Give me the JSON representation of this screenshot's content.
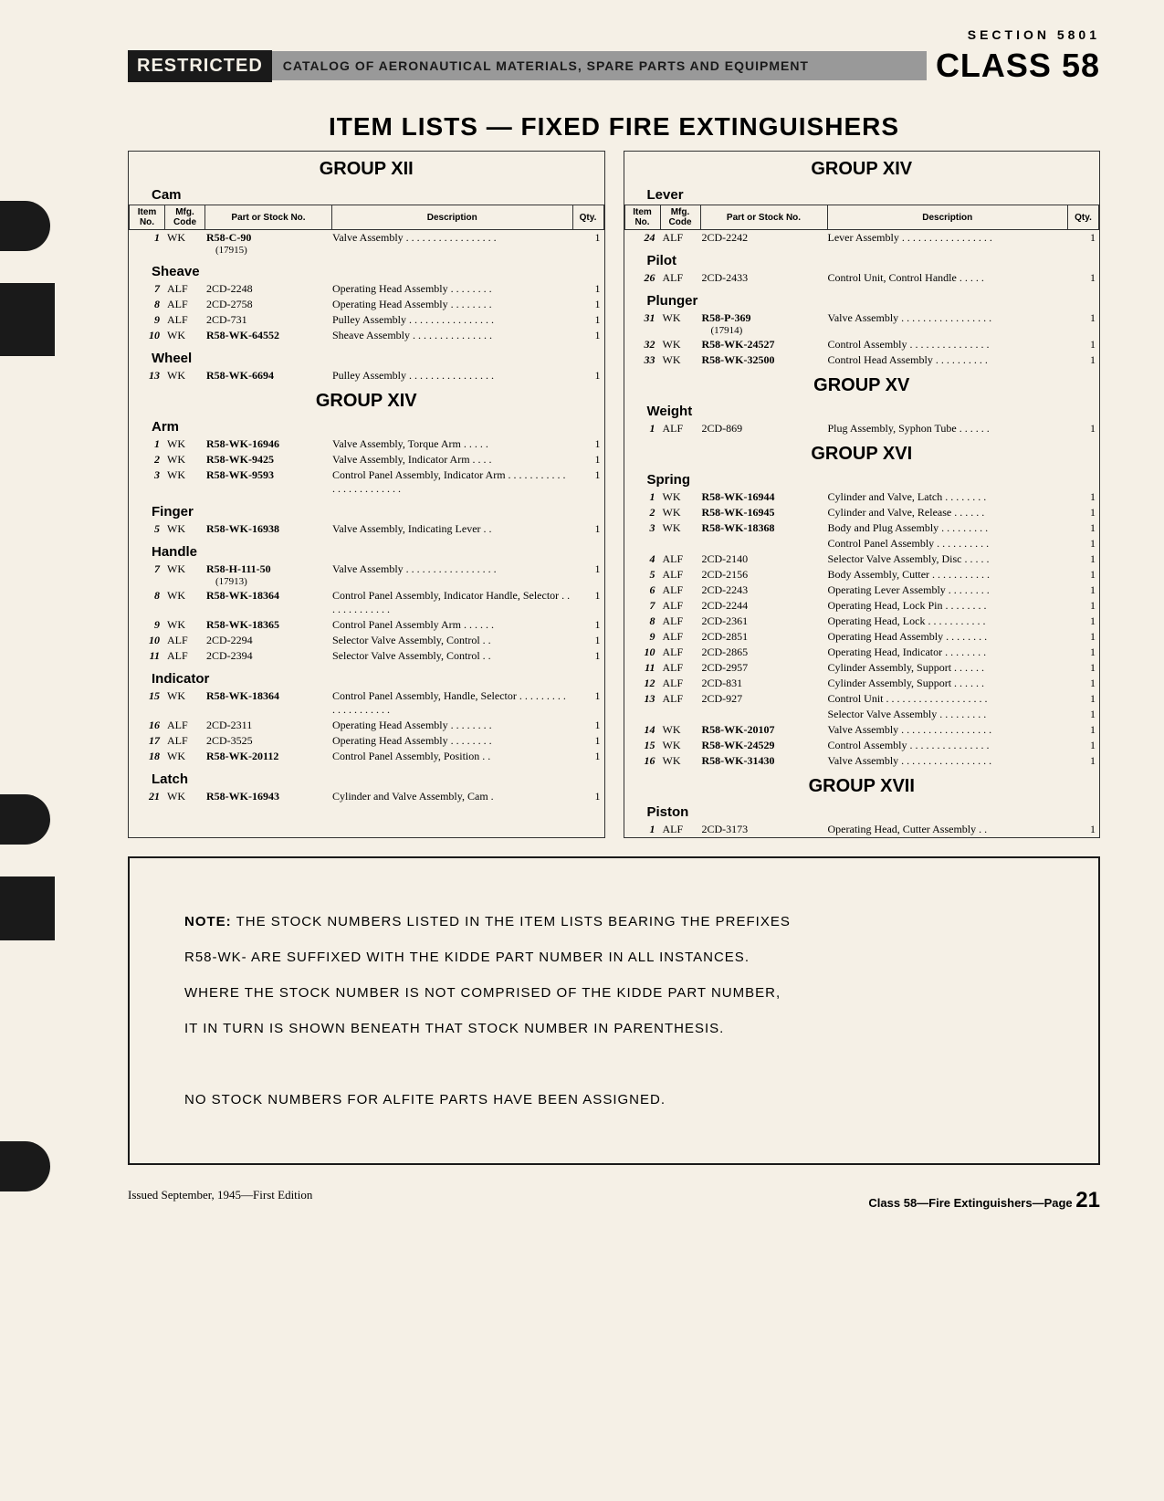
{
  "header": {
    "section_label": "SECTION 5801",
    "restricted": "RESTRICTED",
    "catalog_bar": "CATALOG OF AERONAUTICAL MATERIALS, SPARE PARTS AND EQUIPMENT",
    "class_label": "CLASS 58"
  },
  "page_title": "ITEM LISTS — FIXED FIRE EXTINGUISHERS",
  "table_headers": {
    "item": "Item No.",
    "mfg": "Mfg. Code",
    "part": "Part or Stock No.",
    "desc": "Description",
    "qty": "Qty."
  },
  "left": {
    "group12": {
      "title": "GROUP XII",
      "cam": {
        "title": "Cam",
        "rows": [
          {
            "n": "1",
            "m": "WK",
            "p": "R58-C-90",
            "sub": "(17915)",
            "d": "Valve Assembly . . . . . . . . . . . . . . . . .",
            "q": "1"
          }
        ]
      },
      "sheave": {
        "title": "Sheave",
        "rows": [
          {
            "n": "7",
            "m": "ALF",
            "p": "2CD-2248",
            "d": "Operating Head Assembly . . . . . . . .",
            "q": "1"
          },
          {
            "n": "8",
            "m": "ALF",
            "p": "2CD-2758",
            "d": "Operating Head Assembly . . . . . . . .",
            "q": "1"
          },
          {
            "n": "9",
            "m": "ALF",
            "p": "2CD-731",
            "d": "Pulley Assembly . . . . . . . . . . . . . . . .",
            "q": "1"
          },
          {
            "n": "10",
            "m": "WK",
            "p": "R58-WK-64552",
            "d": "Sheave Assembly . . . . . . . . . . . . . . .",
            "q": "1"
          }
        ]
      },
      "wheel": {
        "title": "Wheel",
        "rows": [
          {
            "n": "13",
            "m": "WK",
            "p": "R58-WK-6694",
            "d": "Pulley Assembly . . . . . . . . . . . . . . . .",
            "q": "1"
          }
        ]
      }
    },
    "group14": {
      "title": "GROUP XIV",
      "arm": {
        "title": "Arm",
        "rows": [
          {
            "n": "1",
            "m": "WK",
            "p": "R58-WK-16946",
            "d": "Valve Assembly, Torque Arm . . . . .",
            "q": "1"
          },
          {
            "n": "2",
            "m": "WK",
            "p": "R58-WK-9425",
            "d": "Valve Assembly, Indicator Arm . . . .",
            "q": "1"
          },
          {
            "n": "3",
            "m": "WK",
            "p": "R58-WK-9593",
            "d": "Control Panel Assembly, Indicator Arm . . . . . . . . . . . . . . . . . . . . . . . .",
            "q": "1"
          }
        ]
      },
      "finger": {
        "title": "Finger",
        "rows": [
          {
            "n": "5",
            "m": "WK",
            "p": "R58-WK-16938",
            "d": "Valve Assembly, Indicating Lever . .",
            "q": "1"
          }
        ]
      },
      "handle": {
        "title": "Handle",
        "rows": [
          {
            "n": "7",
            "m": "WK",
            "p": "R58-H-111-50",
            "sub": "(17913)",
            "d": "Valve Assembly . . . . . . . . . . . . . . . . .",
            "q": "1"
          },
          {
            "n": "8",
            "m": "WK",
            "p": "R58-WK-18364",
            "d": "Control Panel Assembly, Indicator Handle, Selector . . . . . . . . . . . . .",
            "q": "1"
          },
          {
            "n": "9",
            "m": "WK",
            "p": "R58-WK-18365",
            "d": "Control Panel Assembly Arm . . . . . .",
            "q": "1"
          },
          {
            "n": "10",
            "m": "ALF",
            "p": "2CD-2294",
            "d": "Selector Valve Assembly, Control . .",
            "q": "1"
          },
          {
            "n": "11",
            "m": "ALF",
            "p": "2CD-2394",
            "d": "Selector Valve Assembly, Control . .",
            "q": "1"
          }
        ]
      },
      "indicator": {
        "title": "Indicator",
        "rows": [
          {
            "n": "15",
            "m": "WK",
            "p": "R58-WK-18364",
            "d": "Control Panel Assembly, Handle, Selector . . . . . . . . . . . . . . . . . . . .",
            "q": "1"
          },
          {
            "n": "16",
            "m": "ALF",
            "p": "2CD-2311",
            "d": "Operating Head Assembly . . . . . . . .",
            "q": "1"
          },
          {
            "n": "17",
            "m": "ALF",
            "p": "2CD-3525",
            "d": "Operating Head Assembly . . . . . . . .",
            "q": "1"
          },
          {
            "n": "18",
            "m": "WK",
            "p": "R58-WK-20112",
            "d": "Control Panel Assembly, Position . .",
            "q": "1"
          }
        ]
      },
      "latch": {
        "title": "Latch",
        "rows": [
          {
            "n": "21",
            "m": "WK",
            "p": "R58-WK-16943",
            "d": "Cylinder and Valve Assembly, Cam .",
            "q": "1"
          }
        ]
      }
    }
  },
  "right": {
    "group14": {
      "title": "GROUP XIV",
      "lever": {
        "title": "Lever",
        "rows": [
          {
            "n": "24",
            "m": "ALF",
            "p": "2CD-2242",
            "d": "Lever Assembly . . . . . . . . . . . . . . . . .",
            "q": "1"
          }
        ]
      },
      "pilot": {
        "title": "Pilot",
        "rows": [
          {
            "n": "26",
            "m": "ALF",
            "p": "2CD-2433",
            "d": "Control Unit, Control Handle . . . . .",
            "q": "1"
          }
        ]
      },
      "plunger": {
        "title": "Plunger",
        "rows": [
          {
            "n": "31",
            "m": "WK",
            "p": "R58-P-369",
            "sub": "(17914)",
            "d": "Valve Assembly . . . . . . . . . . . . . . . . .",
            "q": "1"
          },
          {
            "n": "32",
            "m": "WK",
            "p": "R58-WK-24527",
            "d": "Control Assembly . . . . . . . . . . . . . . .",
            "q": "1"
          },
          {
            "n": "33",
            "m": "WK",
            "p": "R58-WK-32500",
            "d": "Control Head Assembly . . . . . . . . . .",
            "q": "1"
          }
        ]
      }
    },
    "group15": {
      "title": "GROUP XV",
      "weight": {
        "title": "Weight",
        "rows": [
          {
            "n": "1",
            "m": "ALF",
            "p": "2CD-869",
            "d": "Plug Assembly, Syphon Tube . . . . . .",
            "q": "1"
          }
        ]
      }
    },
    "group16": {
      "title": "GROUP XVI",
      "spring": {
        "title": "Spring",
        "rows": [
          {
            "n": "1",
            "m": "WK",
            "p": "R58-WK-16944",
            "d": "Cylinder and Valve, Latch . . . . . . . .",
            "q": "1"
          },
          {
            "n": "2",
            "m": "WK",
            "p": "R58-WK-16945",
            "d": "Cylinder and Valve, Release . . . . . .",
            "q": "1"
          },
          {
            "n": "3",
            "m": "WK",
            "p": "R58-WK-18368",
            "d": "Body and Plug Assembly . . . . . . . . .",
            "q": "1"
          },
          {
            "n": "",
            "m": "",
            "p": "",
            "d": "Control Panel Assembly . . . . . . . . . .",
            "q": "1"
          },
          {
            "n": "4",
            "m": "ALF",
            "p": "2CD-2140",
            "d": "Selector Valve Assembly, Disc . . . . .",
            "q": "1"
          },
          {
            "n": "5",
            "m": "ALF",
            "p": "2CD-2156",
            "d": "Body Assembly, Cutter . . . . . . . . . . .",
            "q": "1"
          },
          {
            "n": "6",
            "m": "ALF",
            "p": "2CD-2243",
            "d": "Operating Lever Assembly . . . . . . . .",
            "q": "1"
          },
          {
            "n": "7",
            "m": "ALF",
            "p": "2CD-2244",
            "d": "Operating Head, Lock Pin . . . . . . . .",
            "q": "1"
          },
          {
            "n": "8",
            "m": "ALF",
            "p": "2CD-2361",
            "d": "Operating Head, Lock . . . . . . . . . . .",
            "q": "1"
          },
          {
            "n": "9",
            "m": "ALF",
            "p": "2CD-2851",
            "d": "Operating Head Assembly . . . . . . . .",
            "q": "1"
          },
          {
            "n": "10",
            "m": "ALF",
            "p": "2CD-2865",
            "d": "Operating Head, Indicator . . . . . . . .",
            "q": "1"
          },
          {
            "n": "11",
            "m": "ALF",
            "p": "2CD-2957",
            "d": "Cylinder Assembly, Support . . . . . .",
            "q": "1"
          },
          {
            "n": "12",
            "m": "ALF",
            "p": "2CD-831",
            "d": "Cylinder Assembly, Support . . . . . .",
            "q": "1"
          },
          {
            "n": "13",
            "m": "ALF",
            "p": "2CD-927",
            "d": "Control Unit . . . . . . . . . . . . . . . . . . .",
            "q": "1"
          },
          {
            "n": "",
            "m": "",
            "p": "",
            "d": "Selector Valve Assembly . . . . . . . . .",
            "q": "1"
          },
          {
            "n": "14",
            "m": "WK",
            "p": "R58-WK-20107",
            "d": "Valve Assembly . . . . . . . . . . . . . . . . .",
            "q": "1"
          },
          {
            "n": "15",
            "m": "WK",
            "p": "R58-WK-24529",
            "d": "Control Assembly . . . . . . . . . . . . . . .",
            "q": "1"
          },
          {
            "n": "16",
            "m": "WK",
            "p": "R58-WK-31430",
            "d": "Valve Assembly . . . . . . . . . . . . . . . . .",
            "q": "1"
          }
        ]
      }
    },
    "group17": {
      "title": "GROUP XVII",
      "piston": {
        "title": "Piston",
        "rows": [
          {
            "n": "1",
            "m": "ALF",
            "p": "2CD-3173",
            "d": "Operating Head, Cutter Assembly . .",
            "q": "1"
          }
        ]
      }
    }
  },
  "note": {
    "label": "NOTE:",
    "line1": "THE STOCK NUMBERS LISTED IN THE ITEM LISTS BEARING THE PREFIXES",
    "line2": "R58-WK- ARE SUFFIXED WITH THE KIDDE PART NUMBER IN ALL INSTANCES.",
    "line3": "WHERE THE STOCK NUMBER IS NOT COMPRISED OF THE KIDDE PART NUMBER,",
    "line4": "IT IN TURN IS SHOWN BENEATH THAT STOCK NUMBER IN PARENTHESIS.",
    "line5": "NO STOCK NUMBERS FOR ALFITE PARTS HAVE BEEN ASSIGNED."
  },
  "footer": {
    "left": "Issued September, 1945—First Edition",
    "right_text": "Class 58—Fire Extinguishers—Page",
    "page_num": "21"
  }
}
